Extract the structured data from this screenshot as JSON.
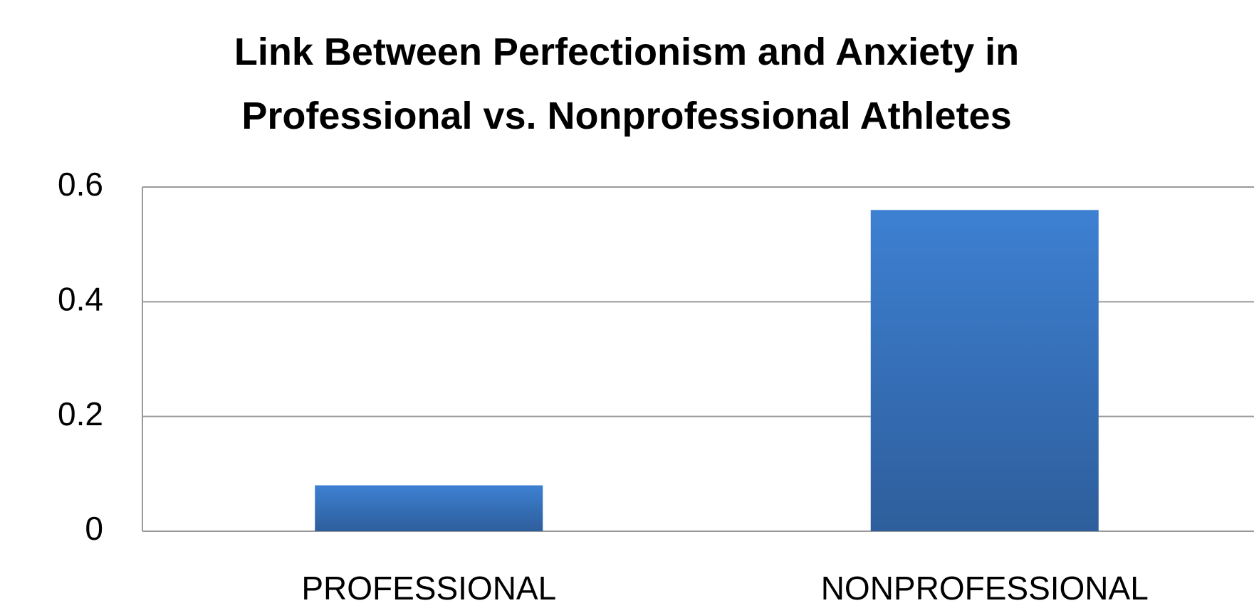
{
  "chart_data": {
    "type": "bar",
    "title": "Link Between Perfectionism and Anxiety in Professional vs. Nonprofessional Athletes",
    "categories": [
      "PROFESSIONAL",
      "NONPROFESSIONAL"
    ],
    "values": [
      0.08,
      0.56
    ],
    "color": "#3a78c8",
    "ylim": [
      0,
      0.6
    ],
    "yticks": [
      0,
      0.2,
      0.4,
      0.6
    ],
    "grid": true
  }
}
